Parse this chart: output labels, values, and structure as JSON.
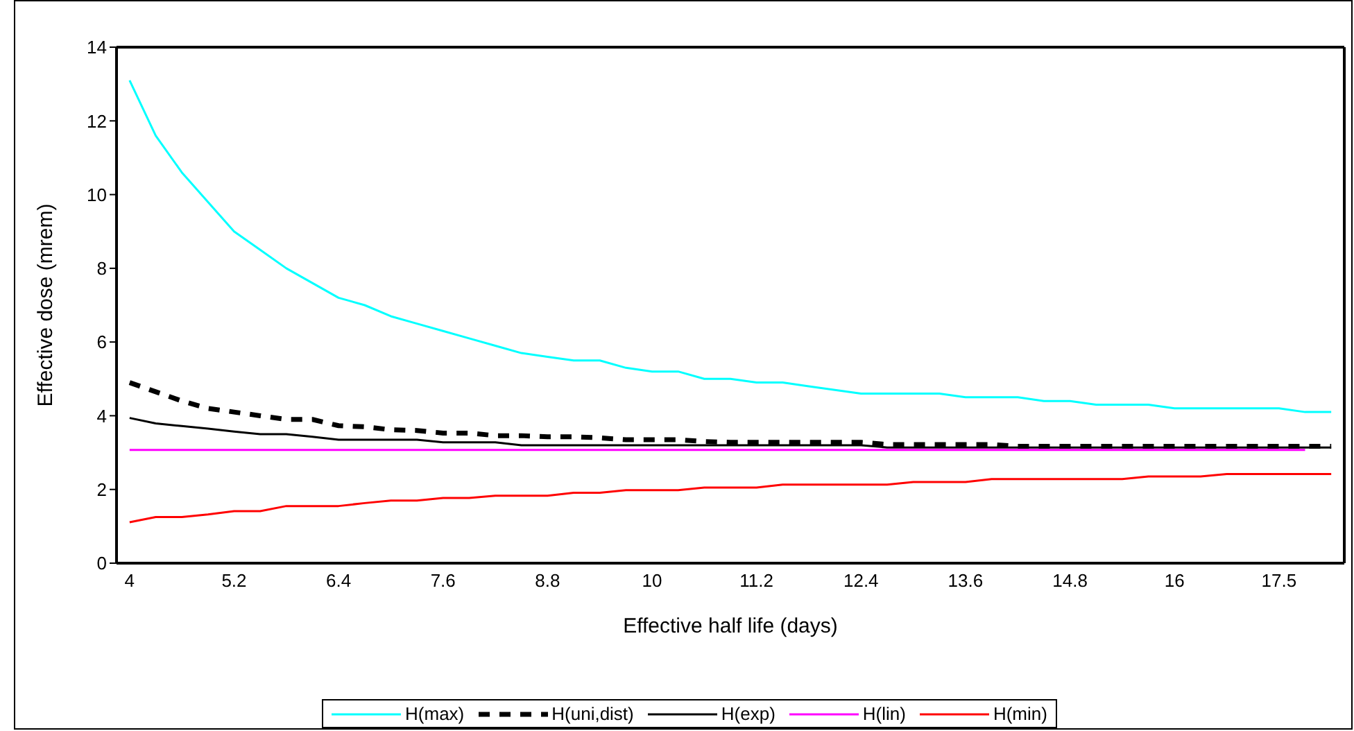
{
  "chart_data": {
    "type": "line",
    "xlabel": "Effective half life (days)",
    "ylabel": "Effective dose (mrem)",
    "categories": [
      "4",
      null,
      null,
      null,
      "5.2",
      null,
      null,
      null,
      "6.4",
      null,
      null,
      null,
      "7.6",
      null,
      null,
      null,
      "8.8",
      null,
      null,
      null,
      "10",
      null,
      null,
      null,
      "11.2",
      null,
      null,
      null,
      "12.4",
      null,
      null,
      null,
      "13.6",
      null,
      null,
      null,
      "14.8",
      null,
      null,
      null,
      "16",
      null,
      null,
      null,
      "17.5",
      null,
      null
    ],
    "ylim": [
      0,
      14
    ],
    "yticks": [
      0,
      2,
      4,
      6,
      8,
      10,
      12,
      14
    ],
    "grid": false,
    "legend": "bottom",
    "marker": "none",
    "series": [
      {
        "name": "H(max)",
        "color": "#00ffff",
        "line_style": "solid",
        "values": [
          13.1,
          11.6,
          10.6,
          9.8,
          9.0,
          8.5,
          8.0,
          7.6,
          7.2,
          7.0,
          6.7,
          6.5,
          6.3,
          6.1,
          5.9,
          5.7,
          5.6,
          5.5,
          5.5,
          5.3,
          5.2,
          5.2,
          5.0,
          5.0,
          4.9,
          4.9,
          4.8,
          4.7,
          4.6,
          4.6,
          4.6,
          4.6,
          4.5,
          4.5,
          4.5,
          4.4,
          4.4,
          4.3,
          4.3,
          4.3,
          4.2,
          4.2,
          4.2,
          4.2,
          4.2,
          4.1,
          4.1
        ]
      },
      {
        "name": "H(uni,dist)",
        "color": "#000000",
        "line_style": "dashed",
        "values": [
          4.9,
          4.65,
          4.4,
          4.2,
          4.1,
          4.0,
          3.9,
          3.9,
          3.73,
          3.7,
          3.62,
          3.6,
          3.53,
          3.53,
          3.46,
          3.46,
          3.43,
          3.43,
          3.4,
          3.35,
          3.35,
          3.35,
          3.3,
          3.28,
          3.28,
          3.28,
          3.28,
          3.28,
          3.28,
          3.22,
          3.22,
          3.22,
          3.22,
          3.22,
          3.17,
          3.17,
          3.17,
          3.17,
          3.17,
          3.17,
          3.17,
          3.17,
          3.17,
          3.17,
          3.17,
          3.17,
          3.17
        ]
      },
      {
        "name": "H(exp)",
        "color": "#000000",
        "line_style": "solid",
        "values": [
          3.94,
          3.79,
          3.72,
          3.65,
          3.57,
          3.5,
          3.5,
          3.43,
          3.35,
          3.35,
          3.35,
          3.35,
          3.28,
          3.28,
          3.28,
          3.2,
          3.2,
          3.2,
          3.2,
          3.2,
          3.2,
          3.2,
          3.2,
          3.2,
          3.2,
          3.2,
          3.2,
          3.2,
          3.2,
          3.14,
          3.14,
          3.14,
          3.14,
          3.14,
          3.14,
          3.14,
          3.14,
          3.14,
          3.14,
          3.14,
          3.14,
          3.14,
          3.14,
          3.14,
          3.14,
          3.14,
          3.14
        ]
      },
      {
        "name": "H(lin)",
        "color": "#ff00ff",
        "line_style": "solid",
        "values": [
          3.07,
          3.07,
          3.07,
          3.07,
          3.07,
          3.07,
          3.07,
          3.07,
          3.07,
          3.07,
          3.07,
          3.07,
          3.07,
          3.07,
          3.07,
          3.07,
          3.07,
          3.07,
          3.07,
          3.07,
          3.07,
          3.07,
          3.07,
          3.07,
          3.07,
          3.07,
          3.07,
          3.07,
          3.07,
          3.07,
          3.07,
          3.07,
          3.07,
          3.07,
          3.07,
          3.07,
          3.07,
          3.07,
          3.07,
          3.07,
          3.07,
          3.07,
          3.07,
          3.07,
          3.07,
          3.07,
          null
        ]
      },
      {
        "name": "H(min)",
        "color": "#ff0000",
        "line_style": "solid",
        "values": [
          1.11,
          1.25,
          1.25,
          1.32,
          1.41,
          1.41,
          1.55,
          1.55,
          1.55,
          1.63,
          1.7,
          1.7,
          1.77,
          1.77,
          1.83,
          1.83,
          1.83,
          1.91,
          1.91,
          1.98,
          1.98,
          1.98,
          2.05,
          2.05,
          2.05,
          2.13,
          2.13,
          2.13,
          2.13,
          2.13,
          2.2,
          2.2,
          2.2,
          2.28,
          2.28,
          2.28,
          2.28,
          2.28,
          2.28,
          2.35,
          2.35,
          2.35,
          2.42,
          2.42,
          2.42,
          2.42,
          2.42
        ]
      }
    ]
  }
}
